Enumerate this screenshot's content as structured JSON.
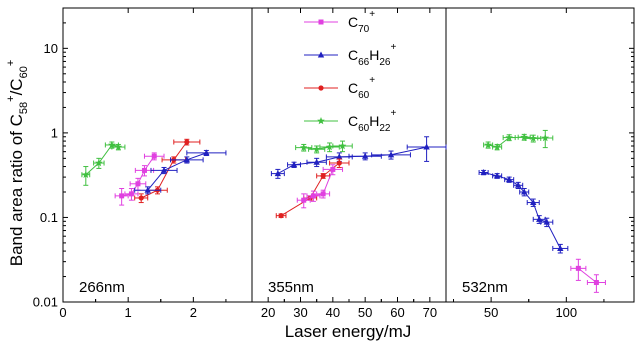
{
  "chart_data": {
    "type": "scatter",
    "ylabel": "Band area ratio of C58+/C60+",
    "xlabel": "Laser energy/mJ",
    "yscale": "log",
    "ylim": [
      0.01,
      30
    ],
    "y_ticks": [
      {
        "value": 0.01,
        "label": "0.01"
      },
      {
        "value": 0.1,
        "label": "0.1"
      },
      {
        "value": 1,
        "label": "1"
      },
      {
        "value": 10,
        "label": "10"
      }
    ],
    "legend": {
      "placement": "top of middle panel",
      "entries": [
        {
          "key": "C70",
          "base": "C",
          "sub1": "70",
          "mid": "",
          "sub2": "",
          "sup": "+",
          "color": "#e040e0",
          "marker": "square"
        },
        {
          "key": "C66H26",
          "base": "C",
          "sub1": "66",
          "mid": "H",
          "sub2": "26",
          "sup": "+",
          "color": "#2020c0",
          "marker": "triangle"
        },
        {
          "key": "C60",
          "base": "C",
          "sub1": "60",
          "mid": "",
          "sub2": "",
          "sup": "+",
          "color": "#e02020",
          "marker": "circle"
        },
        {
          "key": "C60H22",
          "base": "C",
          "sub1": "60",
          "mid": "H",
          "sub2": "22",
          "sup": "+",
          "color": "#40c040",
          "marker": "star"
        }
      ]
    },
    "panels": [
      {
        "label": "266nm",
        "xlim": [
          0,
          2.9
        ],
        "x_ticks": [
          {
            "value": 0,
            "label": "0"
          },
          {
            "value": 1,
            "label": "1"
          },
          {
            "value": 2,
            "label": "2"
          }
        ],
        "series": [
          {
            "key": "C60H22",
            "points": [
              [
                0.35,
                0.32,
                0.06,
                0.08
              ],
              [
                0.55,
                0.44,
                0.08,
                0.06
              ],
              [
                0.75,
                0.72,
                0.1,
                0.06
              ],
              [
                0.85,
                0.68,
                0.1,
                0.05
              ]
            ]
          },
          {
            "key": "C70",
            "points": [
              [
                0.9,
                0.18,
                0.1,
                0.04
              ],
              [
                1.05,
                0.19,
                0.1,
                0.03
              ],
              [
                1.15,
                0.25,
                0.12,
                0.04
              ],
              [
                1.25,
                0.36,
                0.14,
                0.05
              ],
              [
                1.4,
                0.53,
                0.15,
                0.05
              ]
            ]
          },
          {
            "key": "C60",
            "points": [
              [
                1.2,
                0.17,
                0.1,
                0.02
              ],
              [
                1.45,
                0.21,
                0.15,
                0.02
              ],
              [
                1.7,
                0.48,
                0.18,
                0.04
              ],
              [
                1.9,
                0.78,
                0.2,
                0.06
              ]
            ]
          },
          {
            "key": "C66H26",
            "points": [
              [
                1.3,
                0.21,
                0.2,
                0.02
              ],
              [
                1.55,
                0.36,
                0.2,
                0.03
              ],
              [
                1.9,
                0.48,
                0.25,
                0.04
              ],
              [
                2.2,
                0.58,
                0.3,
                0.04
              ]
            ]
          }
        ]
      },
      {
        "label": "355nm",
        "xlim": [
          15,
          75
        ],
        "x_ticks": [
          {
            "value": 20,
            "label": "20"
          },
          {
            "value": 30,
            "label": "30"
          },
          {
            "value": 40,
            "label": "40"
          },
          {
            "value": 50,
            "label": "50"
          },
          {
            "value": 60,
            "label": "60"
          },
          {
            "value": 70,
            "label": "70"
          }
        ],
        "series": [
          {
            "key": "C60H22",
            "points": [
              [
                31,
                0.67,
                2.5,
                0.06
              ],
              [
                35,
                0.64,
                2.5,
                0.06
              ],
              [
                39,
                0.68,
                3,
                0.08
              ],
              [
                43,
                0.7,
                3,
                0.1
              ]
            ]
          },
          {
            "key": "C66H26",
            "points": [
              [
                23,
                0.33,
                2,
                0.04
              ],
              [
                28,
                0.42,
                2,
                0.03
              ],
              [
                35,
                0.45,
                3,
                0.05
              ],
              [
                42,
                0.52,
                4,
                0.06
              ],
              [
                50,
                0.53,
                5,
                0.05
              ],
              [
                58,
                0.55,
                6,
                0.06
              ],
              [
                69,
                0.68,
                6,
                0.22
              ]
            ]
          },
          {
            "key": "C60",
            "points": [
              [
                24,
                0.105,
                1.5,
                0.005
              ],
              [
                33,
                0.17,
                2,
                0.01
              ],
              [
                37,
                0.31,
                2,
                0.02
              ],
              [
                42,
                0.44,
                3,
                0.05
              ]
            ]
          },
          {
            "key": "C70",
            "points": [
              [
                31,
                0.16,
                2,
                0.03
              ],
              [
                34,
                0.18,
                2,
                0.025
              ],
              [
                37,
                0.19,
                2,
                0.02
              ],
              [
                40,
                0.37,
                3,
                0.05
              ]
            ]
          }
        ]
      },
      {
        "label": "532nm",
        "xlim": [
          20,
          145
        ],
        "x_ticks": [
          {
            "value": 50,
            "label": "50"
          },
          {
            "value": 100,
            "label": "100"
          }
        ],
        "series": [
          {
            "key": "C60H22",
            "points": [
              [
                48,
                0.72,
                3,
                0.06
              ],
              [
                54,
                0.68,
                3,
                0.05
              ],
              [
                62,
                0.88,
                4,
                0.07
              ],
              [
                72,
                0.89,
                4,
                0.07
              ],
              [
                78,
                0.86,
                5,
                0.08
              ],
              [
                86,
                0.87,
                5,
                0.2
              ]
            ]
          },
          {
            "key": "C66H26",
            "points": [
              [
                45,
                0.34,
                3,
                0.02
              ],
              [
                54,
                0.31,
                3,
                0.02
              ],
              [
                62,
                0.28,
                3,
                0.02
              ],
              [
                68,
                0.24,
                3,
                0.02
              ],
              [
                72,
                0.2,
                3,
                0.02
              ],
              [
                78,
                0.15,
                4,
                0.015
              ],
              [
                82,
                0.095,
                4,
                0.01
              ],
              [
                87,
                0.088,
                4,
                0.01
              ],
              [
                96,
                0.043,
                5,
                0.005
              ]
            ]
          },
          {
            "key": "C70",
            "points": [
              [
                108,
                0.025,
                5,
                0.007
              ],
              [
                120,
                0.017,
                6,
                0.004
              ]
            ]
          }
        ]
      }
    ]
  }
}
